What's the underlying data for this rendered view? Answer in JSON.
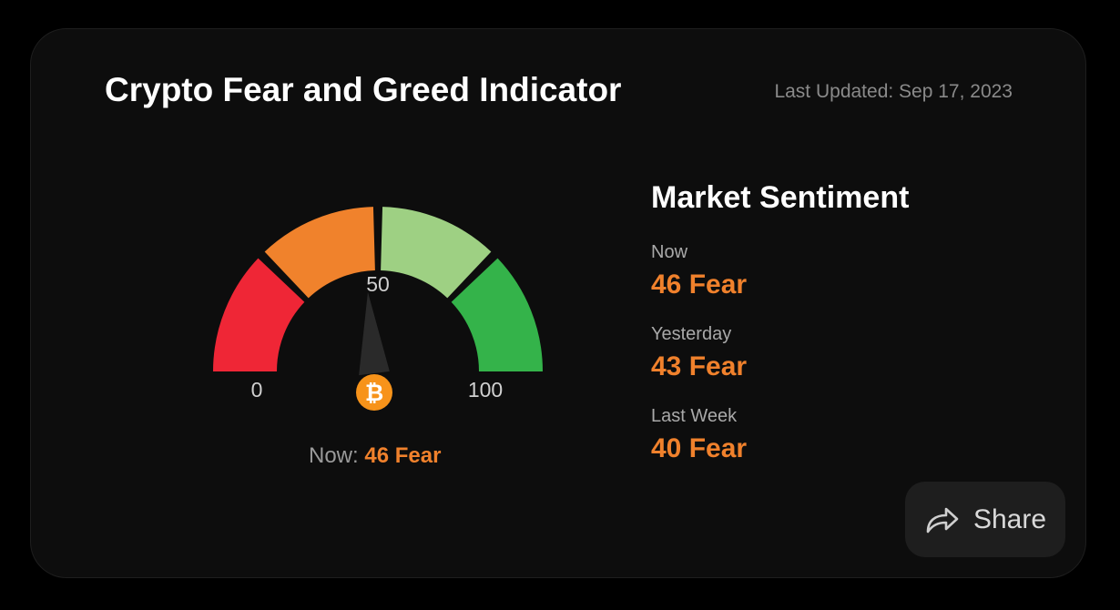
{
  "card": {
    "title": "Crypto Fear and Greed Indicator",
    "last_updated": "Last Updated: Sep 17, 2023"
  },
  "gauge": {
    "min_label": "0",
    "mid_label": "50",
    "max_label": "100",
    "value": 46,
    "min": 0,
    "max": 100,
    "segment_colors": [
      "#ef2636",
      "#f0822c",
      "#9ed083",
      "#34b34a"
    ],
    "needle_color": "#2a2a2a",
    "coin_icon": "bitcoin-icon",
    "coin_color": "#f7931a",
    "now_label": "Now:",
    "now_value": "46 Fear"
  },
  "sentiment": {
    "heading": "Market Sentiment",
    "items": [
      {
        "label": "Now",
        "value": "46 Fear"
      },
      {
        "label": "Yesterday",
        "value": "43 Fear"
      },
      {
        "label": "Last Week",
        "value": "40 Fear"
      }
    ],
    "value_color": "#f0812c"
  },
  "share": {
    "label": "Share",
    "icon": "share-arrow-icon"
  }
}
